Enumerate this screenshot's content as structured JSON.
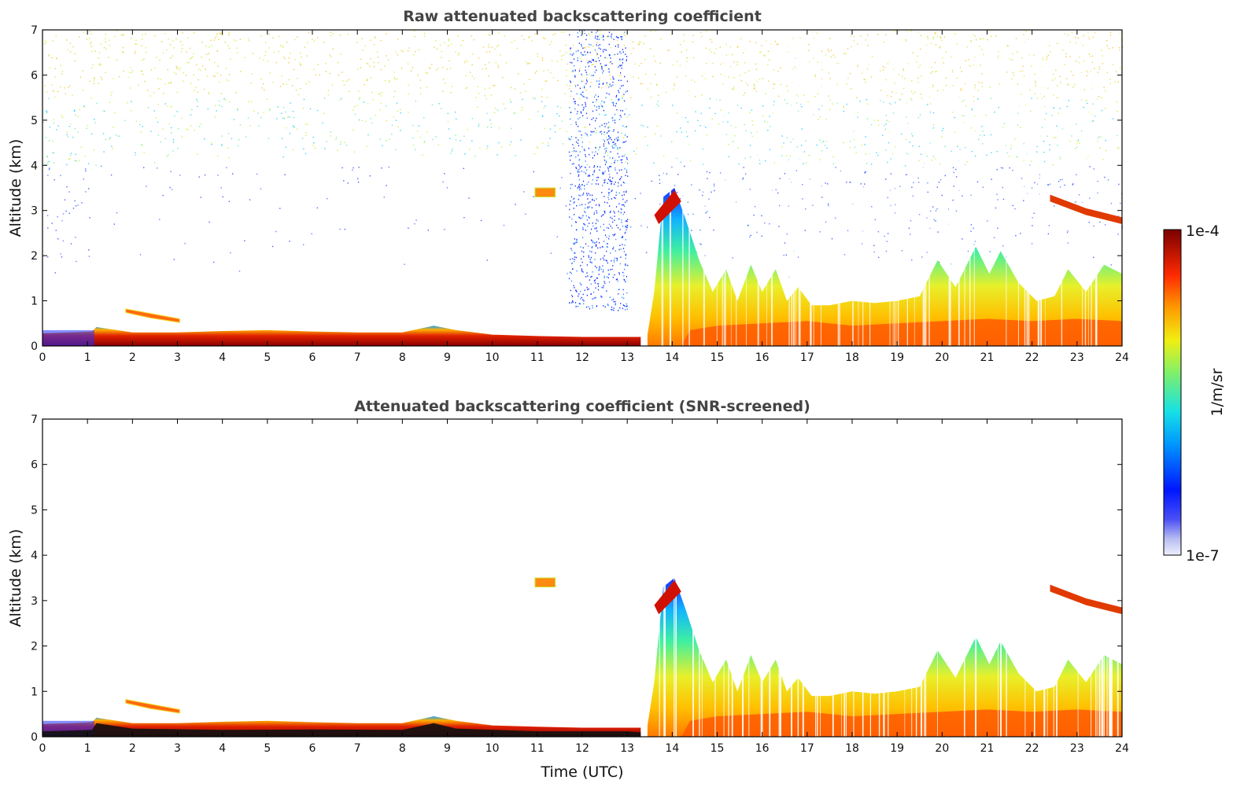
{
  "figure": {
    "colorbar": {
      "max_label": "1e-4",
      "min_label": "1e-7",
      "unit": "1/m/sr",
      "colormap": "jet (white/light-blue at low end, dark red at high end)"
    }
  },
  "chart_data": [
    {
      "type": "heatmap",
      "title": "Raw attenuated backscattering coefficient",
      "xlabel": "",
      "ylabel": "Altitude (km)",
      "xlim": [
        0,
        24
      ],
      "ylim": [
        0,
        7
      ],
      "xticks": [
        0,
        1,
        2,
        3,
        4,
        5,
        6,
        7,
        8,
        9,
        10,
        11,
        12,
        13,
        14,
        15,
        16,
        17,
        18,
        19,
        20,
        21,
        22,
        23,
        24
      ],
      "yticks": [
        0,
        1,
        2,
        3,
        4,
        5,
        6,
        7
      ],
      "xtick_labels": [
        "0",
        "1",
        "2",
        "3",
        "4",
        "5",
        "6",
        "7",
        "8",
        "9",
        "10",
        "11",
        "12",
        "13",
        "14",
        "15",
        "16",
        "17",
        "18",
        "19",
        "20",
        "21",
        "22",
        "23",
        "24"
      ],
      "ytick_labels": [
        "0",
        "1",
        "2",
        "3",
        "4",
        "5",
        "6",
        "7"
      ],
      "color_scale": "log",
      "clim": [
        "1e-7",
        "1e-4"
      ],
      "features": [
        {
          "t_start": 0.0,
          "t_end": 13.0,
          "alt_top_km": 0.35,
          "desc": "surface aerosol layer, dark red near ground"
        },
        {
          "t_start": 1.8,
          "t_end": 3.1,
          "alt_km": 0.7,
          "desc": "thin elevated layer"
        },
        {
          "t_start": 10.9,
          "t_end": 11.4,
          "alt_km": 3.4,
          "desc": "small elevated layer"
        },
        {
          "t_start": 11.7,
          "t_end": 13.0,
          "alt_top_km": 7.0,
          "desc": "noisy blue columns"
        },
        {
          "t_start": 13.6,
          "t_end": 14.3,
          "alt_km": 3.2,
          "desc": "elevated layer reaching ~3.5 km"
        },
        {
          "t_start": 13.6,
          "t_end": 24.0,
          "alt_top_km": 2.0,
          "desc": "convective boundary layer"
        },
        {
          "t_start": 22.4,
          "t_end": 24.0,
          "alt_km": 3.0,
          "desc": "descending elevated layer"
        }
      ]
    },
    {
      "type": "heatmap",
      "title": "Attenuated backscattering coefficient (SNR-screened)",
      "xlabel": "Time (UTC)",
      "ylabel": "Altitude (km)",
      "xlim": [
        0,
        24
      ],
      "ylim": [
        0,
        7
      ],
      "xticks": [
        0,
        1,
        2,
        3,
        4,
        5,
        6,
        7,
        8,
        9,
        10,
        11,
        12,
        13,
        14,
        15,
        16,
        17,
        18,
        19,
        20,
        21,
        22,
        23,
        24
      ],
      "yticks": [
        0,
        1,
        2,
        3,
        4,
        5,
        6,
        7
      ],
      "xtick_labels": [
        "0",
        "1",
        "2",
        "3",
        "4",
        "5",
        "6",
        "7",
        "8",
        "9",
        "10",
        "11",
        "12",
        "13",
        "14",
        "15",
        "16",
        "17",
        "18",
        "19",
        "20",
        "21",
        "22",
        "23",
        "24"
      ],
      "ytick_labels": [
        "0",
        "1",
        "2",
        "3",
        "4",
        "5",
        "6",
        "7"
      ],
      "color_scale": "log",
      "clim": [
        "1e-7",
        "1e-4"
      ],
      "features": [
        {
          "t_start": 0.0,
          "t_end": 13.0,
          "alt_top_km": 0.35,
          "desc": "surface layer, black (saturated) at ground"
        },
        {
          "t_start": 1.8,
          "t_end": 3.1,
          "alt_km": 0.7,
          "desc": "thin elevated layer"
        },
        {
          "t_start": 10.9,
          "t_end": 11.4,
          "alt_km": 3.4,
          "desc": "small elevated layer"
        },
        {
          "t_start": 13.6,
          "t_end": 24.0,
          "alt_top_km": 2.0,
          "desc": "convective boundary layer"
        },
        {
          "t_start": 22.4,
          "t_end": 24.0,
          "alt_km": 3.0,
          "desc": "descending elevated layer"
        }
      ]
    }
  ]
}
